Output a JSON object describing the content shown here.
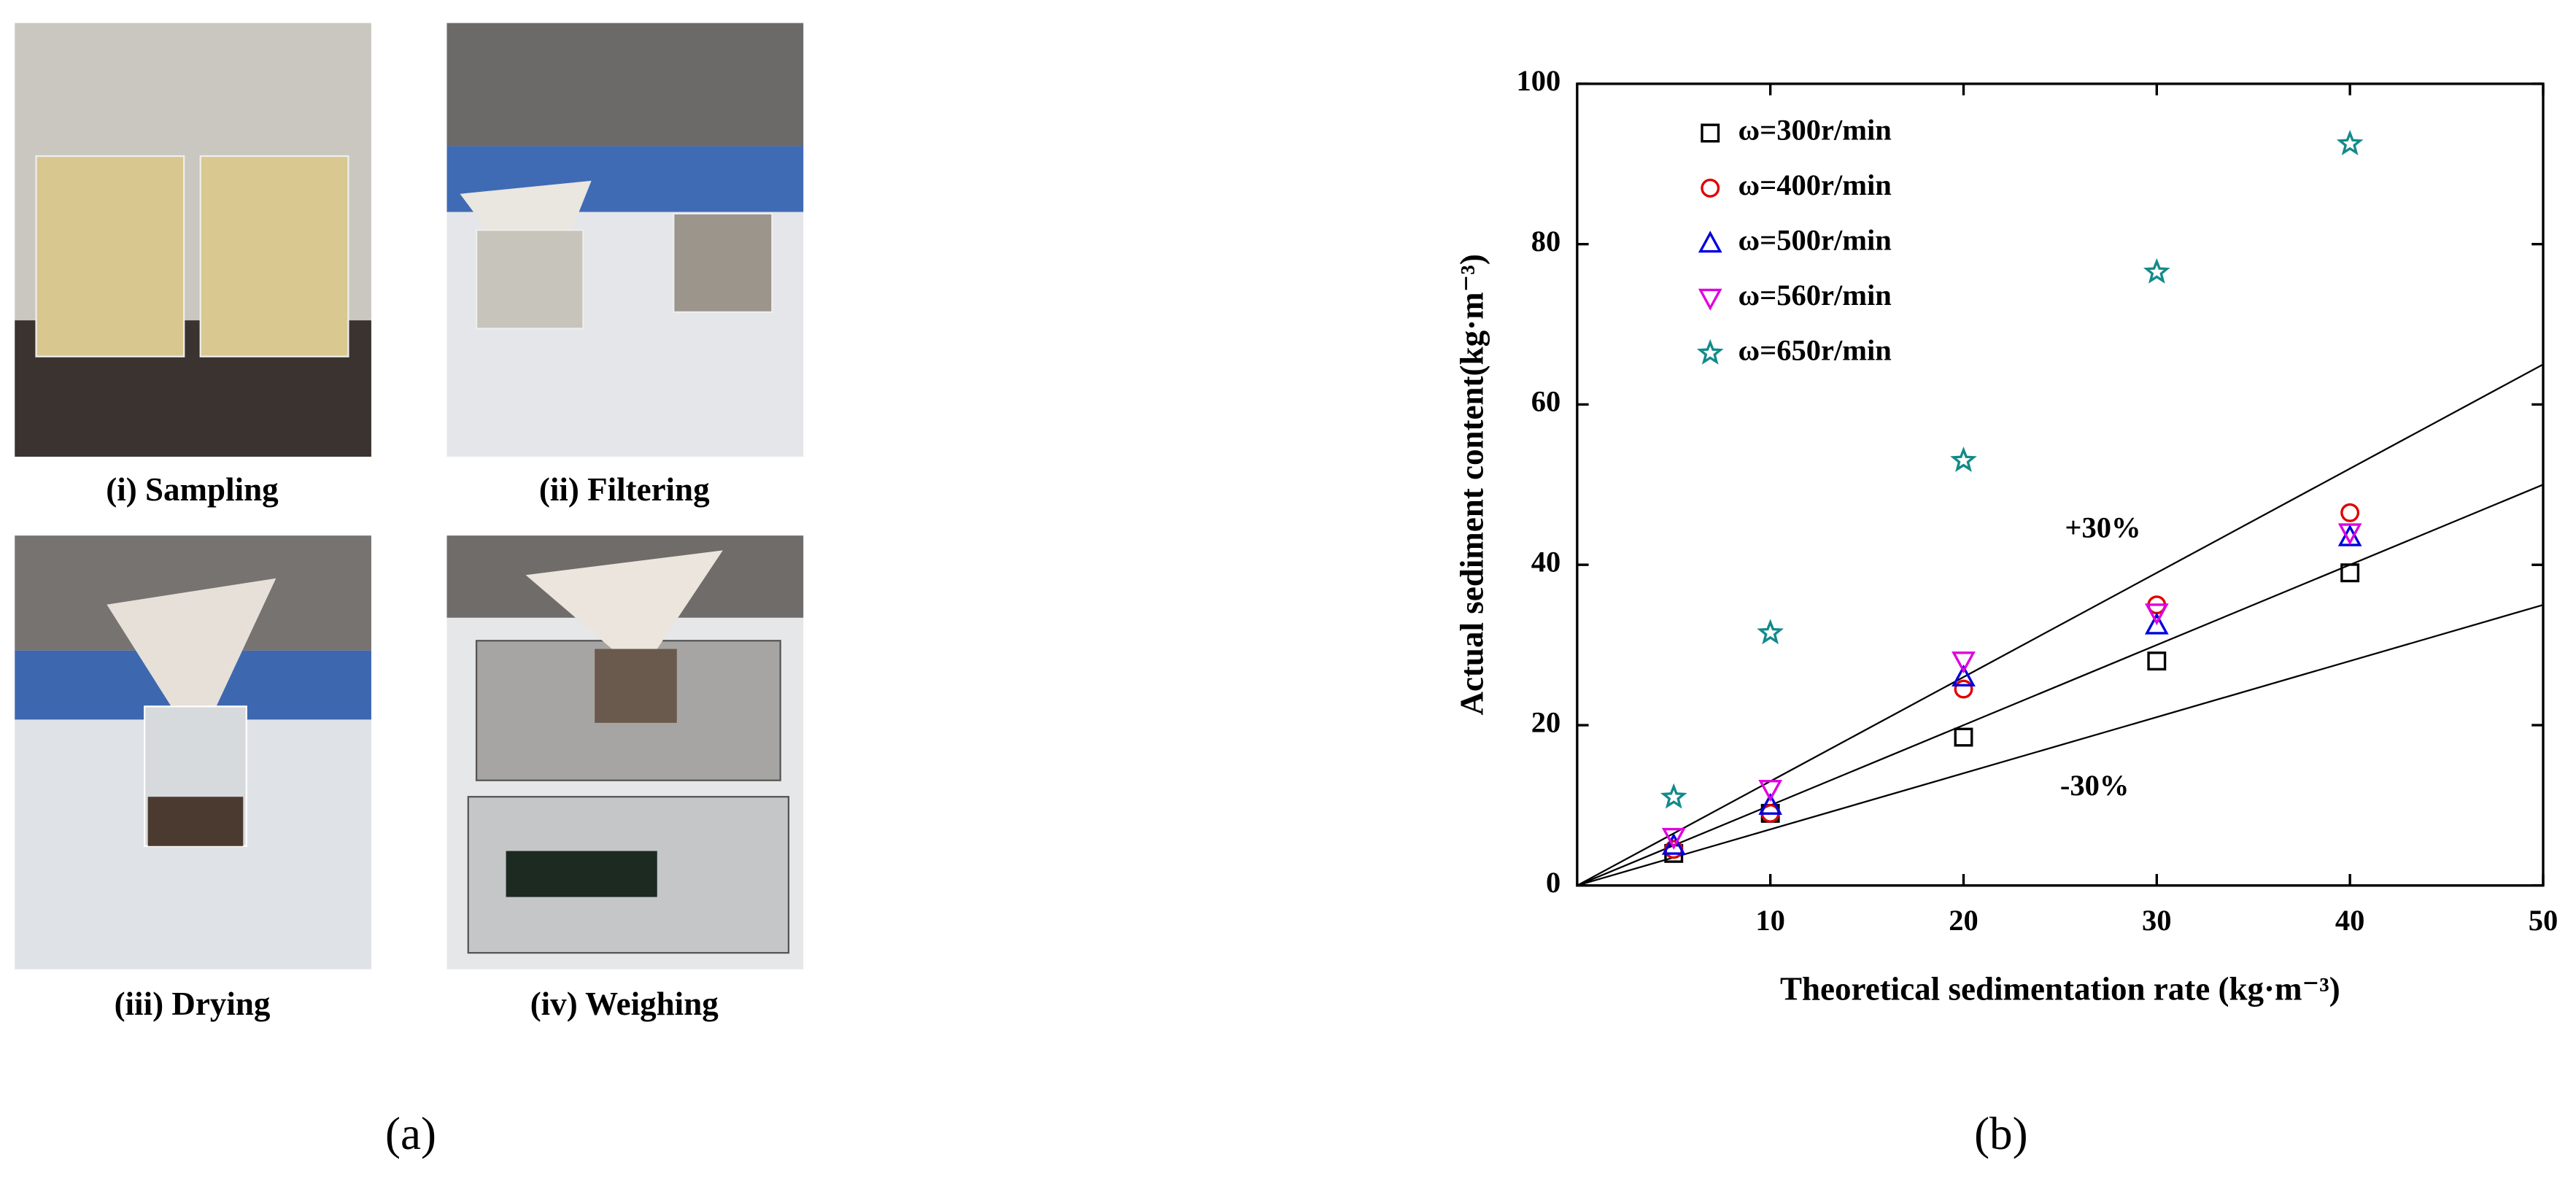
{
  "figure": {
    "photo_captions": [
      "(i) Sampling",
      "(ii) Filtering",
      "(iii) Drying",
      "(iv) Weighing"
    ],
    "panel_labels": [
      "(a)",
      "(b)"
    ]
  },
  "chart_data": {
    "type": "scatter",
    "xlabel": "Theoretical sedimentation rate (kg·m⁻³)",
    "ylabel": "Actual sediment content(kg·m⁻³)",
    "xlim": [
      0,
      50
    ],
    "ylim": [
      0,
      100
    ],
    "xticks": [
      10,
      20,
      30,
      40,
      50
    ],
    "yticks": [
      0,
      20,
      40,
      60,
      80,
      100
    ],
    "legend": "upper-left",
    "reference_lines": [
      {
        "slope": 1
      },
      {
        "slope": 1.3,
        "label": "+30%"
      },
      {
        "slope": 0.7,
        "label": "-30%"
      }
    ],
    "series": [
      {
        "name": "ω=300r/min",
        "color": "#000000",
        "marker": "square",
        "x": [
          5,
          10,
          20,
          30,
          40
        ],
        "values": [
          4,
          9,
          18.5,
          28,
          39
        ]
      },
      {
        "name": "ω=400r/min",
        "color": "#e00000",
        "marker": "circle",
        "x": [
          5,
          10,
          20,
          30,
          40
        ],
        "values": [
          4.5,
          9,
          24.5,
          35,
          46.5
        ]
      },
      {
        "name": "ω=500r/min",
        "color": "#0000e0",
        "marker": "triangle",
        "x": [
          5,
          10,
          20,
          30,
          40
        ],
        "values": [
          5,
          10,
          26,
          32.5,
          43.5
        ]
      },
      {
        "name": "ω=560r/min",
        "color": "#e000e0",
        "marker": "triangle-down",
        "x": [
          5,
          10,
          20,
          30,
          40
        ],
        "values": [
          6,
          12,
          28,
          34,
          44
        ]
      },
      {
        "name": "ω=650r/min",
        "color": "#138a8a",
        "marker": "star",
        "x": [
          5,
          10,
          20,
          30,
          40
        ],
        "values": [
          11,
          31.5,
          53,
          76.5,
          92.5
        ]
      }
    ]
  }
}
